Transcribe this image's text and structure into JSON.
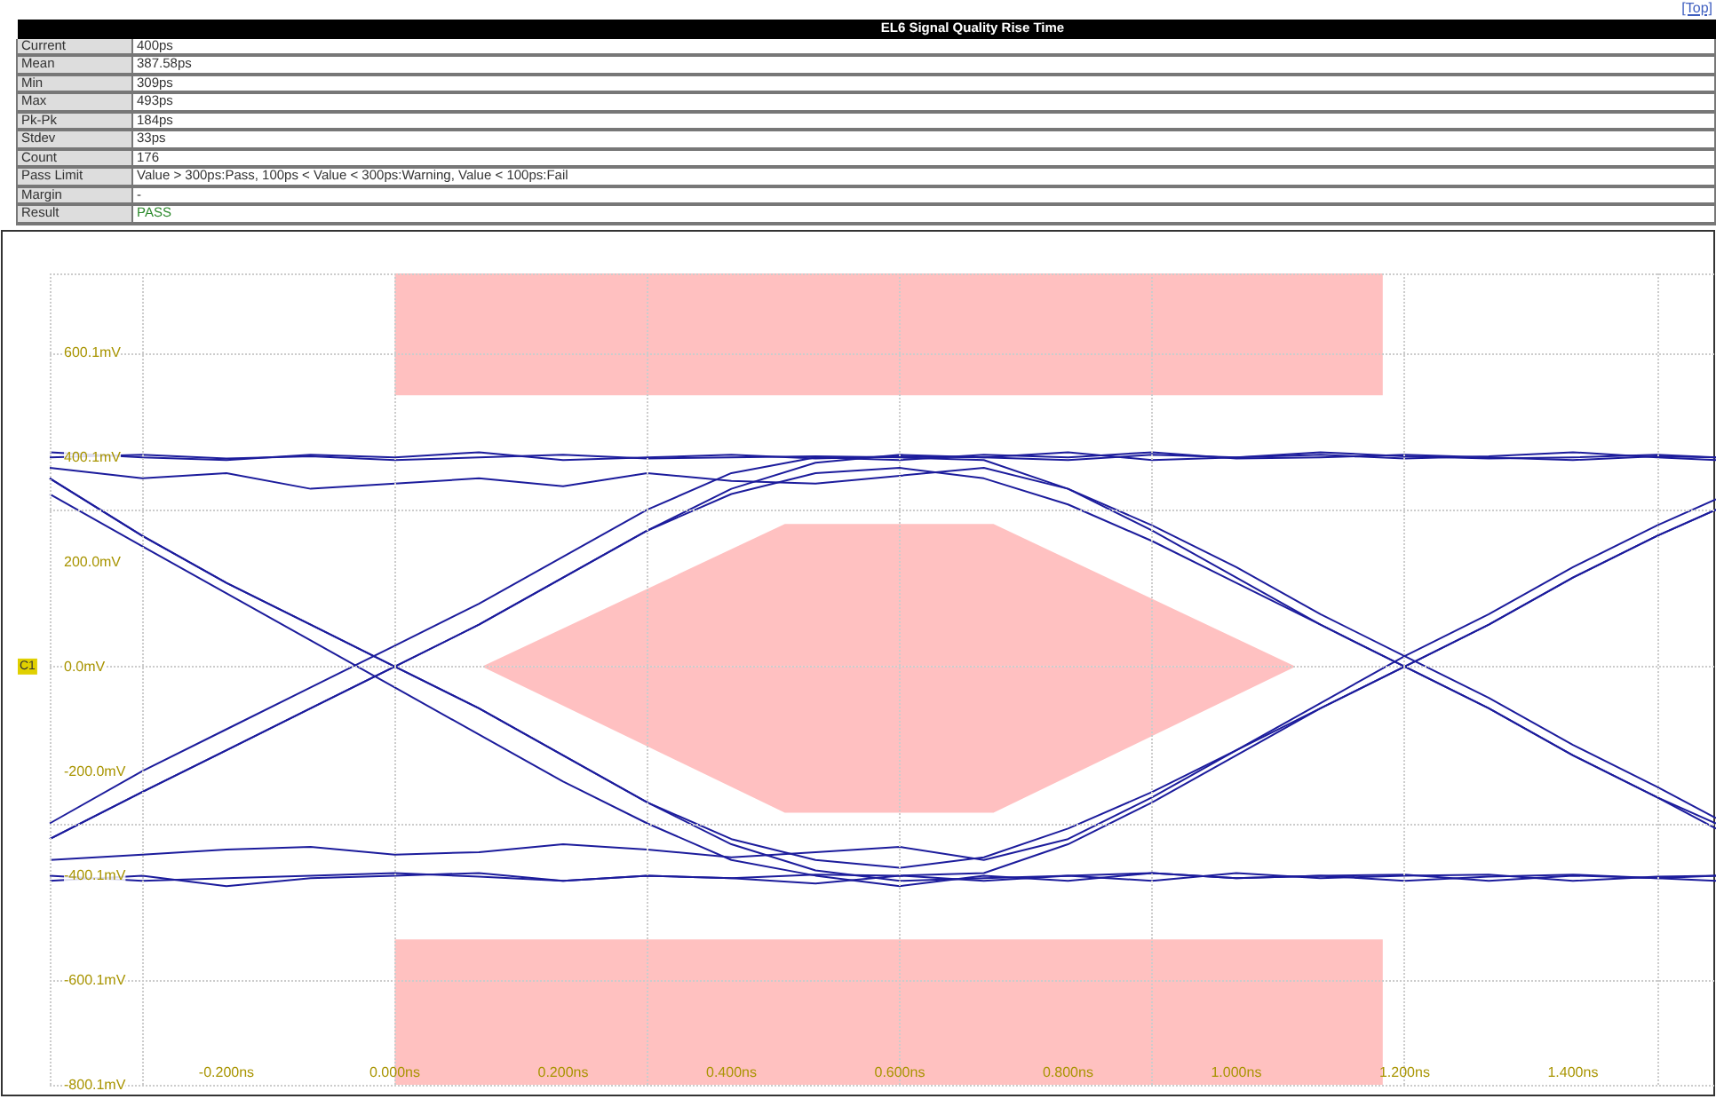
{
  "chart_data": [
    {
      "type": "other",
      "title": "EL6 Signal Quality Rise Time",
      "categories": [
        "Current",
        "Mean",
        "Min",
        "Max",
        "Pk-Pk",
        "Stdev",
        "Count",
        "Pass Limit",
        "Margin",
        "Result"
      ],
      "value_labels": [
        "400ps",
        "387.58ps",
        "309ps",
        "493ps",
        "184ps",
        "33ps",
        "176",
        "Value > 300ps:Pass, 100ps < Value < 300ps:Warning, Value < 100ps:Fail",
        "-",
        "PASS"
      ],
      "annotations": [
        "[Top]"
      ]
    },
    {
      "type": "line",
      "xlim": [
        -0.41,
        1.57
      ],
      "ylim": [
        -800.1,
        752
      ],
      "xticks": [
        {
          "value": -0.2,
          "label": "-0.200ns"
        },
        {
          "value": 0,
          "label": "0.000ns"
        },
        {
          "value": 0.2,
          "label": "0.200ns"
        },
        {
          "value": 0.4,
          "label": "0.400ns"
        },
        {
          "value": 0.6,
          "label": "0.600ns"
        },
        {
          "value": 0.8,
          "label": "0.800ns"
        },
        {
          "value": 1.0,
          "label": "1.000ns"
        },
        {
          "value": 1.2,
          "label": "1.200ns"
        },
        {
          "value": 1.4,
          "label": "1.400ns"
        }
      ],
      "yticks": [
        {
          "value": -800.1,
          "label": "-800.1mV"
        },
        {
          "value": -600.1,
          "label": "-600.1mV"
        },
        {
          "value": -400.1,
          "label": "-400.1mV"
        },
        {
          "value": -200,
          "label": "-200.0mV"
        },
        {
          "value": 0,
          "label": "0.0mV"
        },
        {
          "value": 200,
          "label": "200.0mV"
        },
        {
          "value": 400.1,
          "label": "400.1mV"
        },
        {
          "value": 600.1,
          "label": "600.1mV"
        }
      ],
      "grid": true,
      "annotations": [
        "C1"
      ],
      "x": [
        -0.41,
        -0.3,
        -0.2,
        -0.1,
        0,
        0.1,
        0.2,
        0.3,
        0.4,
        0.5,
        0.6,
        0.7,
        0.8,
        0.9,
        1.0,
        1.1,
        1.2,
        1.3,
        1.4,
        1.5,
        1.57
      ],
      "series": [
        {
          "type": "line",
          "color": "#ffc0c0",
          "x": [
            0,
            1.174
          ],
          "values": [
            null,
            null
          ],
          "lower": [
            519,
            519
          ],
          "upper": [
            752,
            752
          ]
        },
        {
          "type": "area",
          "color": "#ffc1c1",
          "x": [
            0.106,
            0.464,
            0.711,
            1.068
          ],
          "values": [
            0,
            271,
            271,
            0
          ]
        },
        {
          "type": "area",
          "color": "#ffc0c1",
          "x": [
            0.106,
            0.464,
            0.711,
            1.068
          ],
          "values": [
            0,
            -278,
            -278,
            0
          ]
        },
        {
          "type": "line",
          "color": "#ffc1c0",
          "x": [
            0,
            1.174
          ],
          "values": [
            null,
            null
          ],
          "lower": [
            -800,
            -800
          ],
          "upper": [
            -522,
            -522
          ]
        },
        {
          "color": "#1c1c9c",
          "values": [
            -330,
            -240,
            -160,
            -80,
            0,
            80,
            170,
            260,
            340,
            390,
            405,
            400,
            410,
            395,
            400,
            405,
            398,
            402,
            410,
            400,
            395
          ]
        },
        {
          "color": "#1c1c9c",
          "values": [
            360,
            250,
            160,
            80,
            0,
            -80,
            -170,
            -260,
            -340,
            -390,
            -410,
            -405,
            -400,
            -410,
            -395,
            -405,
            -400,
            -398,
            -410,
            -402,
            -400
          ]
        },
        {
          "color": "#1c1c9c",
          "values": [
            -330,
            -240,
            -160,
            -80,
            0,
            80,
            170,
            260,
            330,
            370,
            380,
            360,
            310,
            240,
            160,
            80,
            0,
            -80,
            -170,
            -250,
            -300
          ]
        },
        {
          "color": "#1c1c9c",
          "values": [
            360,
            250,
            160,
            80,
            0,
            -80,
            -170,
            -260,
            -330,
            -370,
            -385,
            -365,
            -310,
            -240,
            -160,
            -80,
            0,
            80,
            170,
            250,
            300
          ]
        },
        {
          "color": "#1c1c9c",
          "values": [
            410,
            400,
            395,
            405,
            400,
            410,
            395,
            400,
            405,
            398,
            402,
            400,
            395,
            405,
            400,
            410,
            402,
            398,
            400,
            405,
            400
          ]
        },
        {
          "color": "#1c1c9c",
          "values": [
            -410,
            -400,
            -420,
            -405,
            -400,
            -395,
            -410,
            -400,
            -405,
            -415,
            -400,
            -410,
            -400,
            -395,
            -405,
            -400,
            -410,
            -402,
            -398,
            -405,
            -410
          ]
        },
        {
          "color": "#1c1c9c",
          "values": [
            400,
            405,
            398,
            402,
            395,
            400,
            405,
            398,
            400,
            402,
            400,
            395,
            340,
            260,
            170,
            80,
            0,
            -80,
            -170,
            -250,
            -310
          ]
        },
        {
          "color": "#1c1c9c",
          "values": [
            -400,
            -410,
            -405,
            -400,
            -395,
            -402,
            -410,
            -400,
            -405,
            -398,
            -400,
            -395,
            -340,
            -260,
            -170,
            -80,
            0,
            80,
            170,
            250,
            300
          ]
        },
        {
          "color": "#1c1c9c",
          "values": [
            -300,
            -200,
            -120,
            -40,
            40,
            120,
            210,
            300,
            370,
            400,
            395,
            405,
            400,
            410,
            398,
            400,
            405,
            400,
            395,
            402,
            400
          ]
        },
        {
          "color": "#1c1c9c",
          "values": [
            330,
            230,
            140,
            50,
            -40,
            -130,
            -220,
            -300,
            -370,
            -400,
            -420,
            -400,
            -410,
            -395,
            -405,
            -400,
            -398,
            -410,
            -400,
            -405,
            -400
          ]
        },
        {
          "color": "#1c1c9c",
          "values": [
            380,
            360,
            370,
            340,
            350,
            360,
            345,
            370,
            355,
            350,
            365,
            380,
            340,
            270,
            190,
            100,
            20,
            -60,
            -150,
            -230,
            -290
          ]
        },
        {
          "color": "#1c1c9c",
          "values": [
            -370,
            -360,
            -350,
            -345,
            -360,
            -355,
            -340,
            -350,
            -365,
            -355,
            -345,
            -370,
            -330,
            -250,
            -160,
            -70,
            20,
            100,
            190,
            270,
            320
          ]
        }
      ]
    }
  ]
}
